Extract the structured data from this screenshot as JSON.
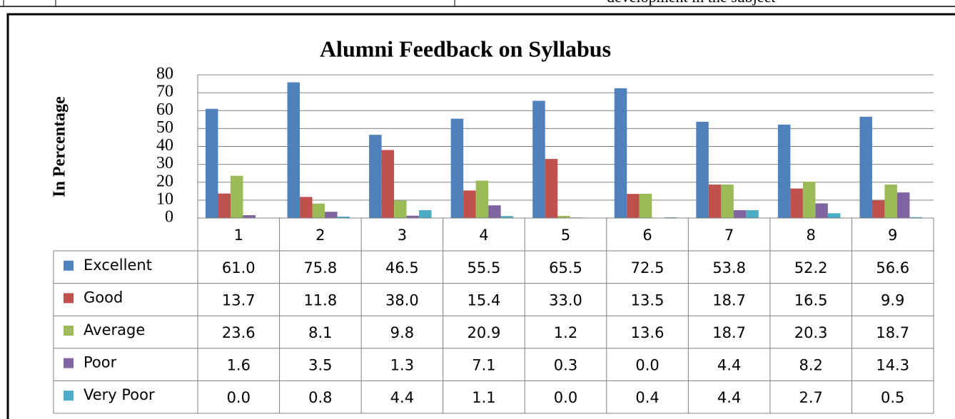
{
  "page_text": "development in the subject",
  "chart_data": {
    "type": "bar",
    "title": "Alumni Feedback on Syllabus",
    "y_label": "In Percentage",
    "categories": [
      "1",
      "2",
      "3",
      "4",
      "5",
      "6",
      "7",
      "8",
      "9"
    ],
    "series": [
      {
        "name": "Excellent",
        "color": "#4f81bd",
        "values": [
          61.0,
          75.8,
          46.5,
          55.5,
          65.5,
          72.5,
          53.8,
          52.2,
          56.6
        ],
        "value_labels": [
          "61.0",
          "75.8",
          "46.5",
          "55.5",
          "65.5",
          "72.5",
          "53.8",
          "52.2",
          "56.6"
        ]
      },
      {
        "name": "Good",
        "color": "#c0504d",
        "values": [
          13.7,
          11.8,
          38.0,
          15.4,
          33.0,
          13.5,
          18.7,
          16.5,
          9.9
        ],
        "value_labels": [
          "13.7",
          "11.8",
          "38.0",
          "15.4",
          "33.0",
          "13.5",
          "18.7",
          "16.5",
          "9.9"
        ]
      },
      {
        "name": "Average",
        "color": "#9bbb59",
        "values": [
          23.6,
          8.1,
          9.8,
          20.9,
          1.2,
          13.6,
          18.7,
          20.3,
          18.7
        ],
        "value_labels": [
          "23.6",
          "8.1",
          "9.8",
          "20.9",
          "1.2",
          "13.6",
          "18.7",
          "20.3",
          "18.7"
        ]
      },
      {
        "name": "Poor",
        "color": "#8064a2",
        "values": [
          1.6,
          3.5,
          1.3,
          7.1,
          0.3,
          0.0,
          4.4,
          8.2,
          14.3
        ],
        "value_labels": [
          "1.6",
          "3.5",
          "1.3",
          "7.1",
          "0.3",
          "0.0",
          "4.4",
          "8.2",
          "14.3"
        ]
      },
      {
        "name": "Very Poor",
        "color": "#4bacc6",
        "values": [
          0.0,
          0.8,
          4.4,
          1.1,
          0.0,
          0.4,
          4.4,
          2.7,
          0.5
        ],
        "value_labels": [
          "0.0",
          "0.8",
          "4.4",
          "1.1",
          "0.0",
          "0.4",
          "4.4",
          "2.7",
          "0.5"
        ]
      }
    ],
    "ylim": [
      0,
      80
    ],
    "yticks": [
      0,
      10,
      20,
      30,
      40,
      50,
      60,
      70,
      80
    ],
    "grid": true
  }
}
